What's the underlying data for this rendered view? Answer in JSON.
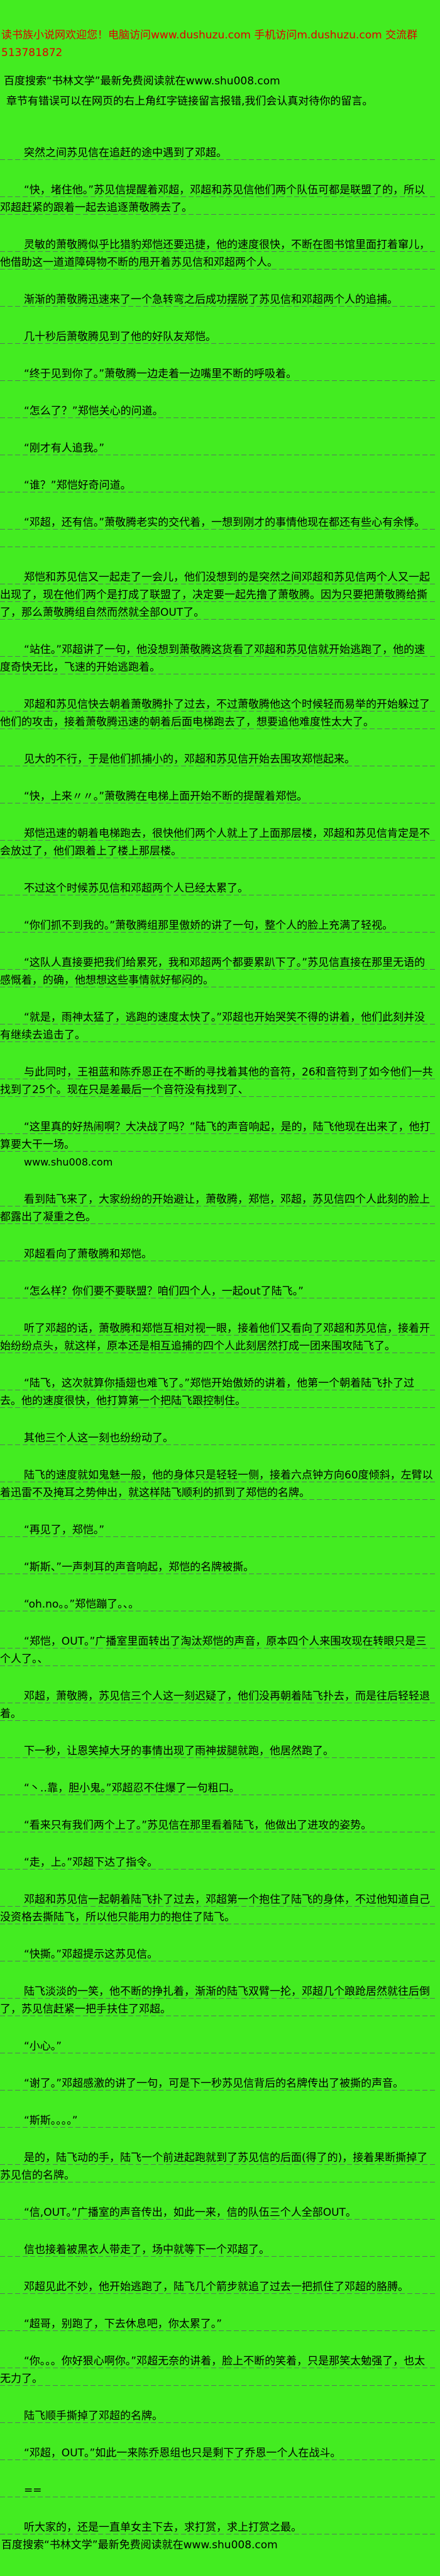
{
  "page": {
    "bg_color": "#43EC21",
    "underline_color": "#58586C",
    "welcome_color": "#DE0000"
  },
  "header": {
    "welcome_line": "读书族小说网欢迎您！电脑访问www.dushuzu.com 手机访问m.dushuzu.com 交流群513781872",
    "baidu_line": "百度搜索“书林文学”最新免费阅读就在www.shu008.com",
    "error_notice": "章节有错误可以在网页的右上角红字链接留言报错,我们会认真对待你的留言。"
  },
  "paragraphs": [
    {
      "t": "突然之间苏见信在追赶的途中遇到了邓超。",
      "cls": ""
    },
    {
      "t": "“快，堵住他。”苏见信提醒着邓超，邓超和苏见信他们两个队伍可都是联盟了的，所以邓超赶紧的跟着一起去追逐萧敬腾去了。",
      "cls": ""
    },
    {
      "t": "灵敏的萧敬腾似乎比猎豹郑恺还要迅捷，他的速度很快，不断在图书馆里面打着窜儿，他借助这一道道障碍物不断的甩开着苏见信和邓超两个人。",
      "cls": ""
    },
    {
      "t": "渐渐的萧敬腾迅速来了一个急转弯之后成功摆脱了苏见信和邓超两个人的追捕。",
      "cls": ""
    },
    {
      "t": "几十秒后萧敬腾见到了他的好队友郑恺。",
      "cls": ""
    },
    {
      "t": "“终于见到你了。”萧敬腾一边走着一边嘴里不断的呼吸着。",
      "cls": ""
    },
    {
      "t": "“怎么了？”郑恺关心的问道。",
      "cls": ""
    },
    {
      "t": "“刚才有人追我。”",
      "cls": ""
    },
    {
      "t": "“谁？”郑恺好奇问道。",
      "cls": ""
    },
    {
      "t": "“邓超，还有信。”萧敬腾老实的交代着，一想到刚才的事情他现在都还有些心有余悸。",
      "cls": ""
    },
    {
      "t": "",
      "cls": "tight"
    },
    {
      "t": "郑恺和苏见信又一起走了一会儿，他们没想到的是突然之间邓超和苏见信两个人又一起出现了，现在他们两个是打成了联盟了，决定要一起先撸了萧敬腾。因为只要把萧敬腾给撕了，那么萧敬腾组自然而然就全部OUT了。",
      "cls": ""
    },
    {
      "t": "“站住。”邓超讲了一句，他没想到萧敬腾这货看了邓超和苏见信就开始逃跑了，他的速度奇快无比，飞速的开始逃跑着。",
      "cls": ""
    },
    {
      "t": "邓超和苏见信快去朝着萧敬腾扑了过去，不过萧敬腾他这个时候轻而易举的开始躲过了他们的攻击，接着萧敬腾迅速的朝着后面电梯跑去了，想要追他难度性太大了。",
      "cls": ""
    },
    {
      "t": "见大的不行，于是他们抓捕小的，邓超和苏见信开始去围攻郑恺起来。",
      "cls": ""
    },
    {
      "t": "“快，上来〃〃。”萧敬腾在电梯上面开始不断的提醒着郑恺。",
      "cls": ""
    },
    {
      "t": "郑恺迅速的朝着电梯跑去，很快他们两个人就上了上面那层楼，邓超和苏见信肯定是不会放过了，他们跟着上了楼上那层楼。",
      "cls": ""
    },
    {
      "t": "不过这个时候苏见信和邓超两个人已经太累了。",
      "cls": ""
    },
    {
      "t": "“你们抓不到我的。”萧敬腾组那里傲娇的讲了一句，整个人的脸上充满了轻视。",
      "cls": ""
    },
    {
      "t": "“这队人直接要把我们给累死，我和邓超两个都要累趴下了。”苏见信直接在那里无语的感慨着，的确，他想想这些事情就好郁闷的。",
      "cls": ""
    },
    {
      "t": "“就是，雨神太猛了，逃跑的速度太快了。”邓超也开始哭笑不得的讲着，他们此刻并没有继续去追击了。",
      "cls": ""
    },
    {
      "t": "与此同时，王祖蓝和陈乔恩正在不断的寻找着其他的音符，26和音符到了如今他们一共找到了25个。现在只是差最后一个音符没有找到了、",
      "cls": ""
    },
    {
      "t": "“这里真的好热闹啊？大决战了吗？”陆飞的声音响起，是的，陆飞他现在出来了，他打算要大干一场。",
      "cls": ""
    },
    {
      "t": "www.shu008.com",
      "cls": "noline tight site-small"
    },
    {
      "t": "看到陆飞来了，大家纷纷的开始避让，萧敬腾，郑恺，邓超，苏见信四个人此刻的脸上都露出了凝重之色。",
      "cls": ""
    },
    {
      "t": "邓超看向了萧敬腾和郑恺。",
      "cls": ""
    },
    {
      "t": "“怎么样？你们要不要联盟？咱们四个人，一起out了陆飞。”",
      "cls": ""
    },
    {
      "t": "听了邓超的话，萧敬腾和郑恺互相对视一眼，接着他们又看向了邓超和苏见信，接着开始纷纷点头，就这样，原本还是相互追捕的四个人此刻居然打成一团来围攻陆飞了。",
      "cls": ""
    },
    {
      "t": "“陆飞，这次就算你插翅也难飞了。”郑恺开始傲娇的讲着，他第一个朝着陆飞扑了过去。他的速度很快，他打算第一个把陆飞跟控制住。",
      "cls": ""
    },
    {
      "t": "其他三个人这一刻也纷纷动了。",
      "cls": ""
    },
    {
      "t": "陆飞的速度就如鬼魅一般，他的身体只是轻轻一侧，接着六点钟方向60度倾斜，左臂以着迅雷不及掩耳之势伸出，就这样陆飞顺利的抓到了郑恺的名牌。",
      "cls": ""
    },
    {
      "t": "“再见了，郑恺。”",
      "cls": ""
    },
    {
      "t": "“斯斯、”一声刺耳的声音响起，郑恺的名牌被撕。",
      "cls": ""
    },
    {
      "t": "“oh.no。。”郑恺蹦了。、。",
      "cls": ""
    },
    {
      "t": "“郑恺，OUT。”广播室里面转出了淘汰郑恺的声音，原本四个人来围攻现在转眼只是三个人了。、",
      "cls": ""
    },
    {
      "t": "邓超，萧敬腾，苏见信三个人这一刻迟疑了，他们没再朝着陆飞扑去，而是往后轻轻退着。",
      "cls": ""
    },
    {
      "t": "下一秒，让恩笑掉大牙的事情出现了雨神拔腿就跑，他居然跑了。",
      "cls": ""
    },
    {
      "t": "“丶‥靠，胆小鬼。”邓超忍不住爆了一句粗口。",
      "cls": ""
    },
    {
      "t": "“看来只有我们两个上了。”苏见信在那里看着陆飞，他做出了进攻的姿势。",
      "cls": ""
    },
    {
      "t": "“走，上。”邓超下达了指令。",
      "cls": ""
    },
    {
      "t": "邓超和苏见信一起朝着陆飞扑了过去，邓超第一个抱住了陆飞的身体，不过他知道自己没资格去撕陆飞，所以他只能用力的抱住了陆飞。",
      "cls": ""
    },
    {
      "t": "“快撕。”邓超提示这苏见信。",
      "cls": ""
    },
    {
      "t": "陆飞淡淡的一笑，他不断的挣扎着，渐渐的陆飞双臂一抡，邓超几个踉跄居然就往后倒了，苏见信赶紧一把手扶住了邓超。",
      "cls": ""
    },
    {
      "t": "“小心。”",
      "cls": ""
    },
    {
      "t": "“谢了。”邓超感激的讲了一句，可是下一秒苏见信背后的名牌传出了被撕的声音。",
      "cls": ""
    },
    {
      "t": "“斯斯。。。。”",
      "cls": ""
    },
    {
      "t": "是的，陆飞动的手，陆飞一个前进起跑就到了苏见信的后面(得了的)，接着果断撕掉了苏见信的名牌。",
      "cls": ""
    },
    {
      "t": "“信,OUT。”广播室的声音传出，如此一来，信的队伍三个人全部OUT。",
      "cls": ""
    },
    {
      "t": "信也接着被黑衣人带走了，场中就等下一个邓超了。",
      "cls": ""
    },
    {
      "t": "邓超见此不妙，他开始逃跑了，陆飞几个箭步就追了过去一把抓住了邓超的胳膊。",
      "cls": ""
    },
    {
      "t": "“超哥，别跑了，下去休息吧，你太累了。”",
      "cls": ""
    },
    {
      "t": "“你。。。你好狠心啊你。”邓超无奈的讲着，脸上不断的笑着，只是那笑太勉强了，也太无力了。",
      "cls": ""
    },
    {
      "t": "陆飞顺手撕掉了邓超的名牌。",
      "cls": ""
    },
    {
      "t": "“邓超，OUT。”如此一来陈乔恩组也只是剩下了乔恩一个人在战斗。",
      "cls": ""
    },
    {
      "t": "==",
      "cls": ""
    },
    {
      "t": "听大家的，还是一直单女主下去，求打赏，求上打赏之最。",
      "cls": ""
    }
  ],
  "footer": {
    "baidu_line": "百度搜索“书林文学”最新免费阅读就在www.shu008.com"
  }
}
